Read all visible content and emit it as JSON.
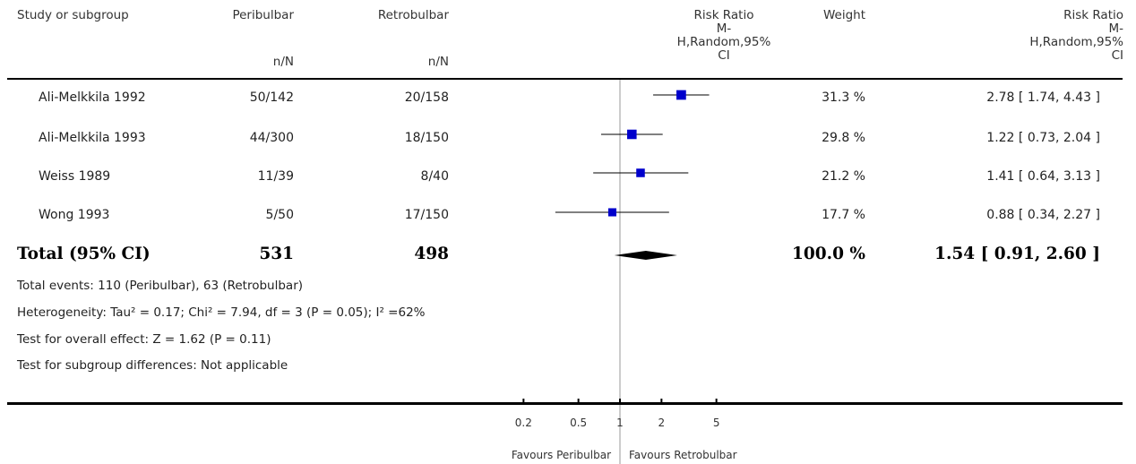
{
  "header": {
    "study": "Study or subgroup",
    "group1": "Peribulbar",
    "group2": "Retrobulbar",
    "group1_sub": "n/N",
    "group2_sub": "n/N",
    "plot": "Risk Ratio\nM-\nH,Random,95%\nCI",
    "weight": "Weight",
    "effect": "Risk Ratio\nM-\nH,Random,95%\nCI"
  },
  "studies": [
    {
      "name": "Ali-Melkkila 1992",
      "g1": "50/142",
      "g2": "20/158",
      "weight": "31.3 %",
      "ci_text": "2.78 [ 1.74, 4.43 ]"
    },
    {
      "name": "Ali-Melkkila 1993",
      "g1": "44/300",
      "g2": "18/150",
      "weight": "29.8 %",
      "ci_text": "1.22 [ 0.73, 2.04 ]"
    },
    {
      "name": "Weiss 1989",
      "g1": "11/39",
      "g2": "8/40",
      "weight": "21.2 %",
      "ci_text": "1.41 [ 0.64, 3.13 ]"
    },
    {
      "name": "Wong 1993",
      "g1": "5/50",
      "g2": "17/150",
      "weight": "17.7 %",
      "ci_text": "0.88 [ 0.34, 2.27 ]"
    }
  ],
  "total": {
    "label": "Total (95% CI)",
    "g1": "531",
    "g2": "498",
    "weight": "100.0 %",
    "ci_text": "1.54 [ 0.91, 2.60 ]"
  },
  "footer": {
    "events": "Total events: 110 (Peribulbar), 63 (Retrobulbar)",
    "heterogeneity": "Heterogeneity: Tau² = 0.17; Chi² = 7.94, df = 3 (P = 0.05); I² =62%",
    "overall": "Test for overall effect: Z = 1.62 (P = 0.11)",
    "subgroup": "Test for subgroup differences: Not applicable"
  },
  "axis": {
    "ticks": [
      "0.2",
      "0.5",
      "1",
      "2",
      "5"
    ],
    "favours_left": "Favours Peribulbar",
    "favours_right": "Favours Retrobulbar"
  },
  "colors": {
    "marker": "#0000cc",
    "diamond": "#000000",
    "refline": "#999999"
  },
  "chart_data": {
    "type": "forest",
    "scale": "log",
    "xlim": [
      0.2,
      5
    ],
    "ticks": [
      0.2,
      0.5,
      1,
      2,
      5
    ],
    "studies": [
      {
        "name": "Ali-Melkkila 1992",
        "rr": 2.78,
        "lo": 1.74,
        "hi": 4.43,
        "weight": 31.3
      },
      {
        "name": "Ali-Melkkila 1993",
        "rr": 1.22,
        "lo": 0.73,
        "hi": 2.04,
        "weight": 29.8
      },
      {
        "name": "Weiss 1989",
        "rr": 1.41,
        "lo": 0.64,
        "hi": 3.13,
        "weight": 21.2
      },
      {
        "name": "Wong 1993",
        "rr": 0.88,
        "lo": 0.34,
        "hi": 2.27,
        "weight": 17.7
      }
    ],
    "total": {
      "rr": 1.54,
      "lo": 0.91,
      "hi": 2.6,
      "weight": 100.0
    }
  }
}
